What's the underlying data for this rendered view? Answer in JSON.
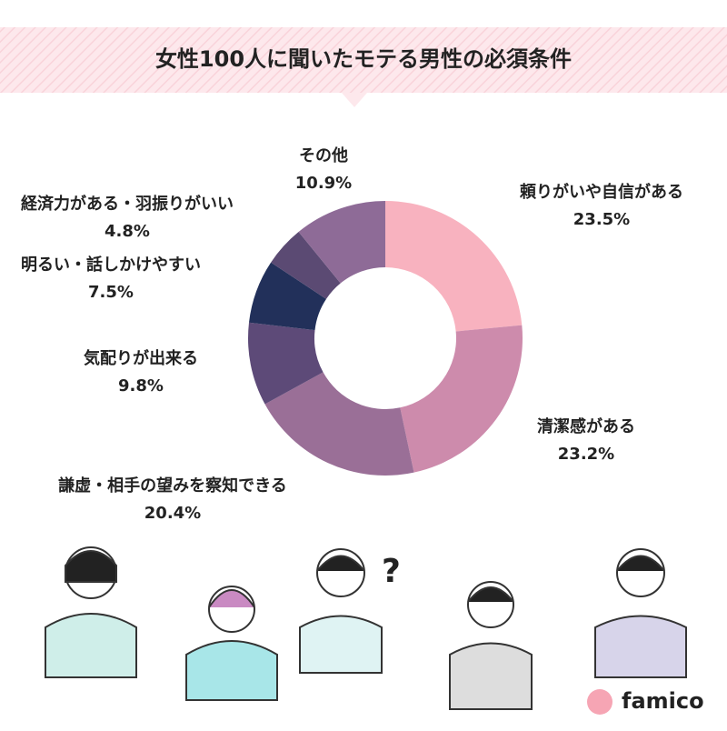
{
  "chart_data": {
    "type": "pie",
    "donut": true,
    "title": "女性100人に聞いたモテる男性の必須条件",
    "categories": [
      "頼りがいや自信がある",
      "清潔感がある",
      "謙虚・相手の望みを察知できる",
      "気配りが出来る",
      "明るい・話しかけやすい",
      "経済力がある・羽振りがいい",
      "その他"
    ],
    "values": [
      23.5,
      23.2,
      20.4,
      9.8,
      7.5,
      4.8,
      10.9
    ],
    "value_labels": [
      "23.5%",
      "23.2%",
      "20.4%",
      "9.8%",
      "7.5%",
      "4.8%",
      "10.9%"
    ],
    "colors": [
      "#f8b2bf",
      "#cd8bac",
      "#9a6f97",
      "#5d4a78",
      "#22305a",
      "#5b4a73",
      "#8e6b97"
    ]
  },
  "brand": "famico"
}
